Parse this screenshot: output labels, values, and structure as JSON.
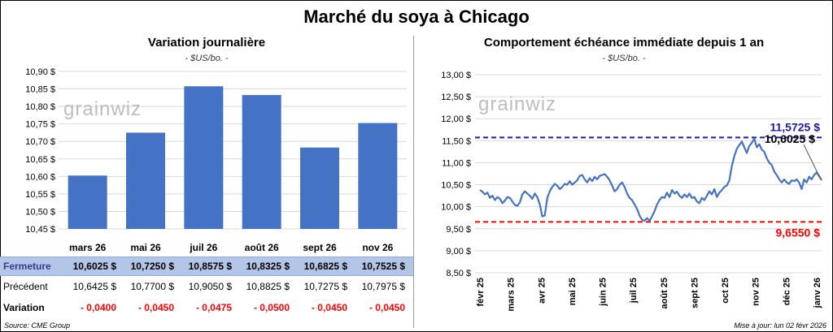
{
  "title": "Marché du soya à Chicago",
  "chart_data": [
    {
      "type": "bar",
      "title": "Variation journalière",
      "unit": "- $US/bo. -",
      "watermark": "grainwiz",
      "categories": [
        "mars 26",
        "mai 26",
        "juil 26",
        "août 26",
        "sept 26",
        "nov 26"
      ],
      "values": [
        10.6025,
        10.725,
        10.8575,
        10.8325,
        10.6825,
        10.7525
      ],
      "ylim": [
        10.45,
        10.9
      ],
      "yticks": [
        "10,45 $",
        "10,50 $",
        "10,55 $",
        "10,60 $",
        "10,65 $",
        "10,70 $",
        "10,75 $",
        "10,80 $",
        "10,85 $",
        "10,90 $"
      ],
      "grid": true,
      "bar_color": "#4472c4"
    },
    {
      "type": "line",
      "title": "Comportement échéance immédiate depuis 1 an",
      "unit": "- $US/bo. -",
      "watermark": "grainwiz",
      "x_ticks": [
        "févr 25",
        "mars 25",
        "avr 25",
        "mai 25",
        "juin 25",
        "juil 25",
        "août 25",
        "sept 25",
        "oct 25",
        "nov 25",
        "déc 25",
        "janv 26"
      ],
      "ylim": [
        8.5,
        13.0
      ],
      "yticks": [
        "8,50 $",
        "9,00 $",
        "9,50 $",
        "10,00 $",
        "10,50 $",
        "11,00 $",
        "11,50 $",
        "12,00 $",
        "12,50 $",
        "13,00 $"
      ],
      "grid": true,
      "line_color": "#4472c4",
      "series": [
        {
          "values": [
            10.38,
            10.34,
            10.28,
            10.32,
            10.2,
            10.25,
            10.15,
            10.22,
            10.18,
            10.08,
            10.14,
            10.22,
            10.2,
            10.12,
            10.04,
            10.02,
            10.1,
            10.28,
            10.35,
            10.3,
            10.25,
            10.18,
            10.3,
            10.22,
            10.05,
            9.78,
            9.8,
            10.2,
            10.35,
            10.45,
            10.52,
            10.48,
            10.4,
            10.45,
            10.52,
            10.5,
            10.58,
            10.5,
            10.55,
            10.6,
            10.7,
            10.72,
            10.62,
            10.55,
            10.65,
            10.58,
            10.68,
            10.62,
            10.7,
            10.72,
            10.74,
            10.68,
            10.6,
            10.48,
            10.35,
            10.4,
            10.5,
            10.55,
            10.45,
            10.3,
            10.2,
            10.15,
            10.05,
            9.95,
            9.8,
            9.7,
            9.68,
            9.74,
            9.68,
            9.78,
            9.9,
            10.05,
            10.15,
            10.22,
            10.2,
            10.32,
            10.22,
            10.38,
            10.3,
            10.34,
            10.25,
            10.2,
            10.28,
            10.22,
            10.3,
            10.2,
            10.22,
            10.12,
            10.08,
            10.2,
            10.15,
            10.25,
            10.35,
            10.28,
            10.4,
            10.22,
            10.32,
            10.38,
            10.45,
            10.48,
            10.6,
            10.92,
            11.15,
            11.32,
            11.4,
            11.48,
            11.35,
            11.22,
            11.38,
            11.45,
            11.55,
            11.35,
            11.42,
            11.3,
            11.25,
            11.1,
            11.0,
            10.95,
            10.8,
            10.72,
            10.62,
            10.55,
            10.62,
            10.55,
            10.52,
            10.6,
            10.58,
            10.62,
            10.55,
            10.4,
            10.62,
            10.55,
            10.68,
            10.62,
            10.72,
            10.78,
            10.7,
            10.6
          ],
          "lines": [
            {
              "value": 11.5725,
              "label": "11,5725 $",
              "color": "#1a1aa8"
            },
            {
              "value": 9.655,
              "label": "9,6550 $",
              "color": "#ff0000"
            }
          ],
          "last_label": "10,6025 $"
        }
      ]
    }
  ],
  "table": {
    "rows": [
      {
        "label": "Fermeture",
        "cells": [
          "10,6025  $",
          "10,7250  $",
          "10,8575  $",
          "10,8325  $",
          "10,6825  $",
          "10,7525  $"
        ]
      },
      {
        "label": "Précédent",
        "cells": [
          "10,6425  $",
          "10,7700  $",
          "10,9050  $",
          "10,8825  $",
          "10,7275  $",
          "10,7975  $"
        ]
      },
      {
        "label": "Variation",
        "cells": [
          "- 0,0400",
          "- 0,0450",
          "- 0,0475",
          "- 0,0500",
          "- 0,0450",
          "- 0,0450"
        ]
      }
    ]
  },
  "footer": {
    "source": "Source: CME Group",
    "updated": "Mise à jour: lun 02 févr 2026"
  }
}
